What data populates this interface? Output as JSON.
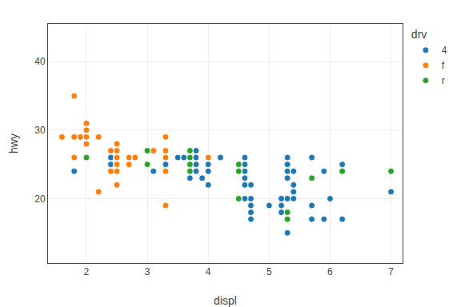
{
  "chart_data": {
    "type": "scatter",
    "x_label": "displ",
    "y_label": "hwy",
    "legend_title": "drv",
    "legend": "right",
    "grid": true,
    "xlim": [
      1.37,
      7.19
    ],
    "ylim": [
      10.6,
      45.5
    ],
    "xticks": [
      2,
      3,
      4,
      5,
      6,
      7
    ],
    "yticks": [
      20,
      30,
      40
    ],
    "series": [
      {
        "name": "4",
        "x": [
          1.8,
          1.8,
          2.0,
          2.0,
          2.8,
          2.8,
          3.1,
          4.2,
          5.3,
          5.3,
          5.3,
          5.7,
          6.0,
          5.3,
          5.3,
          5.7,
          6.2,
          5.3,
          5.3,
          5.7,
          6.2,
          7.0,
          5.3,
          5.3,
          6.2,
          6.2,
          7.0,
          3.8,
          3.8,
          4.0,
          4.0,
          4.6,
          4.6,
          4.6,
          5.4,
          1.8,
          1.8,
          2.0,
          2.4,
          2.4,
          3.1,
          3.5,
          3.6,
          2.4,
          3.0,
          3.3,
          3.3,
          3.3,
          3.3,
          3.3,
          3.8,
          3.8,
          4.0,
          3.7,
          3.7,
          3.9,
          3.9,
          4.7,
          4.7,
          4.7,
          5.2,
          5.2,
          5.7,
          5.9,
          4.7,
          4.7,
          4.7,
          5.2,
          5.2,
          5.7,
          5.9,
          4.6,
          5.4,
          5.4,
          4.0,
          4.0,
          4.0,
          4.0,
          4.6,
          5.0,
          4.2,
          4.2,
          4.6,
          4.6,
          4.6,
          5.4,
          5.4
        ],
        "values": [
          29,
          29,
          31,
          30,
          26,
          26,
          27,
          26,
          25,
          24,
          25,
          23,
          20,
          15,
          20,
          17,
          17,
          26,
          23,
          26,
          25,
          21,
          18,
          26,
          24,
          24,
          21,
          27,
          25,
          25,
          24,
          25,
          23,
          24,
          21,
          24,
          24,
          26,
          24,
          26,
          24,
          26,
          26,
          25,
          27,
          25,
          25,
          25,
          25,
          25,
          26,
          24,
          26,
          23,
          24,
          23,
          23,
          19,
          20,
          17,
          19,
          18,
          17,
          24,
          22,
          19,
          18,
          20,
          20,
          19,
          17,
          22,
          22,
          20,
          24,
          24,
          22,
          22,
          20,
          19,
          26,
          26,
          24,
          24,
          26,
          24,
          24
        ]
      },
      {
        "name": "f",
        "x": [
          1.8,
          1.8,
          2.0,
          2.0,
          2.8,
          2.8,
          3.1,
          1.8,
          1.8,
          2.0,
          2.4,
          2.4,
          2.5,
          2.5,
          3.3,
          2.0,
          2.0,
          2.0,
          2.0,
          2.5,
          2.5,
          2.5,
          2.5,
          3.3,
          3.3,
          3.3,
          3.3,
          3.3,
          2.2,
          2.2,
          2.2,
          2.2,
          2.5,
          2.5,
          2.5,
          2.5,
          1.9,
          1.9,
          2.2,
          2.2,
          2.5,
          2.5,
          2.5,
          2.5,
          2.5,
          2.5,
          2.5,
          2.7,
          2.7,
          2.7,
          3.0,
          3.7,
          4.0,
          1.8,
          1.8,
          2.0,
          2.0,
          2.8,
          2.8,
          3.1,
          1.8,
          1.8,
          2.0,
          2.4,
          2.4,
          2.5,
          2.5,
          3.3,
          1.6,
          1.6,
          1.6,
          1.6,
          1.6,
          1.8,
          1.8,
          1.8,
          2.0,
          2.4,
          2.4,
          2.4,
          2.4
        ],
        "values": [
          29,
          29,
          31,
          30,
          26,
          26,
          27,
          26,
          29,
          26,
          24,
          24,
          24,
          22,
          19,
          28,
          29,
          26,
          26,
          26,
          25,
          28,
          28,
          26,
          27,
          24,
          26,
          29,
          21,
          21,
          21,
          21,
          26,
          26,
          26,
          25,
          29,
          29,
          29,
          29,
          24,
          24,
          27,
          25,
          25,
          25,
          27,
          26,
          25,
          25,
          27,
          26,
          26,
          29,
          29,
          31,
          30,
          26,
          26,
          27,
          26,
          29,
          26,
          24,
          24,
          24,
          22,
          19,
          29,
          29,
          29,
          29,
          29,
          35,
          35,
          29,
          26,
          24,
          24,
          24,
          27
        ]
      },
      {
        "name": "r",
        "x": [
          2.0,
          2.0,
          3.0,
          3.0,
          3.0,
          3.0,
          3.0,
          3.7,
          3.7,
          3.7,
          3.7,
          3.7,
          3.7,
          3.7,
          3.7,
          3.7,
          3.7,
          3.7,
          3.7,
          3.7,
          3.7,
          3.7,
          3.7,
          3.7,
          3.7,
          3.7,
          3.7,
          3.7,
          3.7,
          3.7,
          3.7,
          4.5,
          4.5,
          4.5,
          4.5,
          4.5,
          4.5,
          4.5,
          4.5,
          5.3,
          5.3,
          5.3,
          5.3,
          5.3,
          5.3,
          5.7,
          6.2,
          7.0
        ],
        "values": [
          26,
          26,
          25,
          27,
          25,
          27,
          25,
          24,
          26,
          27,
          24,
          26,
          24,
          25,
          26,
          25,
          24,
          25,
          24,
          26,
          24,
          26,
          26,
          26,
          24,
          26,
          24,
          24,
          25,
          26,
          24,
          20,
          20,
          20,
          24,
          25,
          24,
          24,
          24,
          17,
          17,
          17,
          17,
          18,
          17,
          23,
          24,
          24
        ]
      }
    ]
  }
}
